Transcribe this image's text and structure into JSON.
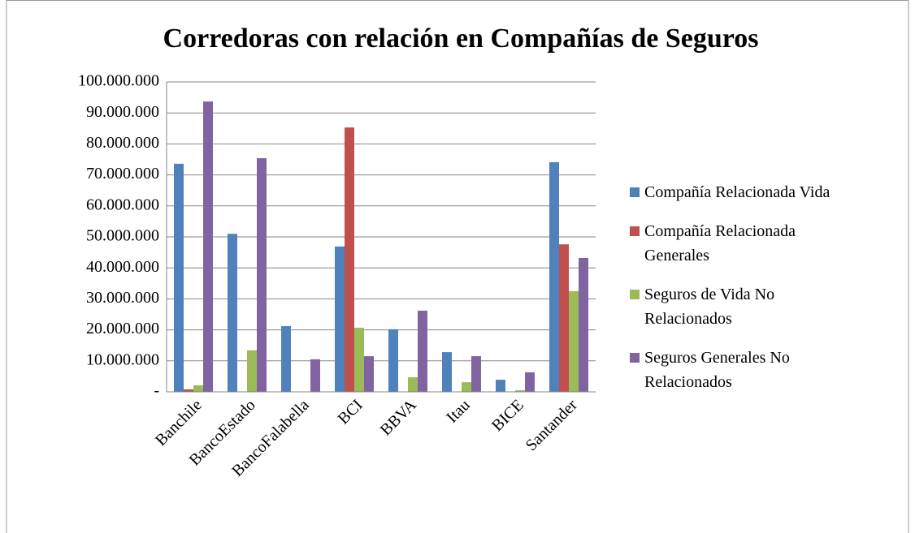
{
  "chart_data": {
    "type": "bar",
    "title": "Corredoras con relación en Compañías de Seguros",
    "categories": [
      "Banchile",
      "BancoEstado",
      "BancoFalabella",
      "BCI",
      "BBVA",
      "Itau",
      "BICE",
      "Santander"
    ],
    "series": [
      {
        "name": "Compañía Relacionada Vida",
        "color": "#4f81bd",
        "values": [
          73600000,
          51000000,
          21200000,
          46900000,
          20200000,
          12800000,
          3900000,
          74100000
        ]
      },
      {
        "name": "Compañía Relacionada Generales",
        "color": "#c0504d",
        "values": [
          800000,
          0,
          0,
          85300000,
          0,
          0,
          0,
          47600000
        ]
      },
      {
        "name": "Seguros de Vida No Relacionados",
        "color": "#9bbb59",
        "values": [
          2100000,
          13400000,
          0,
          20700000,
          4700000,
          3100000,
          500000,
          32500000
        ]
      },
      {
        "name": "Seguros Generales No Relacionados",
        "color": "#8064a2",
        "values": [
          93700000,
          75400000,
          10500000,
          11500000,
          26200000,
          11500000,
          6300000,
          43200000
        ]
      }
    ],
    "ylim": [
      0,
      100000000
    ],
    "yticks": [
      {
        "value": 0,
        "label": "-"
      },
      {
        "value": 10000000,
        "label": "10.000.000"
      },
      {
        "value": 20000000,
        "label": "20.000.000"
      },
      {
        "value": 30000000,
        "label": "30.000.000"
      },
      {
        "value": 40000000,
        "label": "40.000.000"
      },
      {
        "value": 50000000,
        "label": "50.000.000"
      },
      {
        "value": 60000000,
        "label": "60.000.000"
      },
      {
        "value": 70000000,
        "label": "70.000.000"
      },
      {
        "value": 80000000,
        "label": "80.000.000"
      },
      {
        "value": 90000000,
        "label": "90.000.000"
      },
      {
        "value": 100000000,
        "label": "100.000.000"
      }
    ],
    "grid": true,
    "legend": "right"
  }
}
